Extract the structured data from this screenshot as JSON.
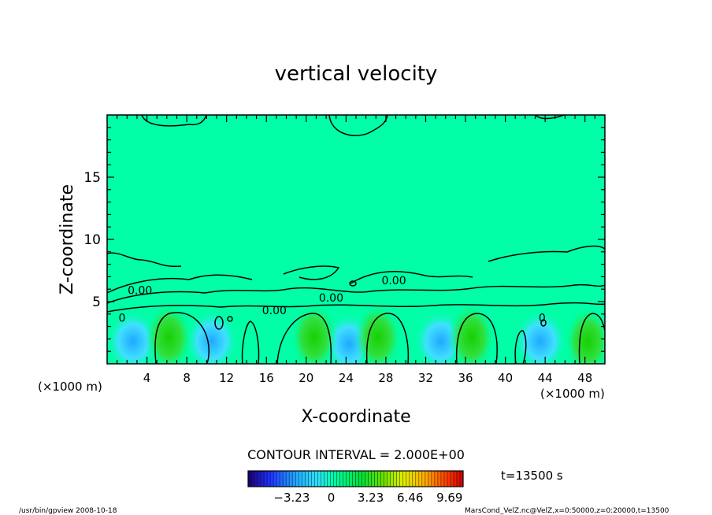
{
  "chart_data": {
    "type": "heatmap",
    "title": "vertical velocity",
    "xlabel": "X-coordinate",
    "ylabel": "Z-coordinate",
    "x_unit_left": "(×1000 m)",
    "x_unit_right": "(×1000 m)",
    "xlim": [
      0,
      50
    ],
    "ylim": [
      0,
      20
    ],
    "xticks": [
      "4",
      "8",
      "12",
      "16",
      "20",
      "24",
      "28",
      "32",
      "36",
      "40",
      "44",
      "48"
    ],
    "xtick_values": [
      4,
      8,
      12,
      16,
      20,
      24,
      28,
      32,
      36,
      40,
      44,
      48
    ],
    "yticks": [
      "5",
      "10",
      "15"
    ],
    "ytick_values": [
      5,
      10,
      15
    ],
    "contour_interval": "CONTOUR INTERVAL = 2.000E+00",
    "time_label": "t=13500 s",
    "contour_labels": [
      {
        "text": "0.00",
        "x": 3.3,
        "z": 5.6
      },
      {
        "text": "0.00",
        "x": 16.8,
        "z": 4.0
      },
      {
        "text": "0.00",
        "x": 22.5,
        "z": 5.0
      },
      {
        "text": "0.00",
        "x": 28.8,
        "z": 6.4
      },
      {
        "text": "0",
        "x": 1.5,
        "z": 3.4
      },
      {
        "text": "0",
        "x": 43.7,
        "z": 3.4
      }
    ],
    "updrafts": [
      {
        "x": 6.2,
        "z": 2.1,
        "peak": 3.0
      },
      {
        "x": 20.8,
        "z": 2.1,
        "peak": 2.6
      },
      {
        "x": 27.2,
        "z": 2.1,
        "peak": 2.6
      },
      {
        "x": 36.6,
        "z": 2.1,
        "peak": 2.8
      },
      {
        "x": 48.3,
        "z": 1.8,
        "peak": 1.8
      }
    ],
    "downdrafts": [
      {
        "x": 2.6,
        "z": 1.8,
        "peak": -1.6
      },
      {
        "x": 10.5,
        "z": 1.8,
        "peak": -1.2
      },
      {
        "x": 24.3,
        "z": 1.6,
        "peak": -1.4
      },
      {
        "x": 33.5,
        "z": 1.8,
        "peak": -1.0
      },
      {
        "x": 43.5,
        "z": 1.8,
        "peak": -1.2
      }
    ],
    "colorbar": {
      "tick_labels": [
        "−3.23",
        "0",
        "3.23",
        "6.46",
        "9.69"
      ],
      "tick_values": [
        -3.23,
        0,
        3.23,
        6.46,
        9.69
      ],
      "min": -6.8,
      "max": 10.8
    },
    "colors": {
      "background_field": "#00ffa6",
      "contour_line": "#000000"
    }
  },
  "footer": {
    "left": "/usr/bin/gpview   2008-10-18",
    "right": "MarsCond_VelZ.nc@VelZ,x=0:50000,z=0:20000,t=13500"
  }
}
